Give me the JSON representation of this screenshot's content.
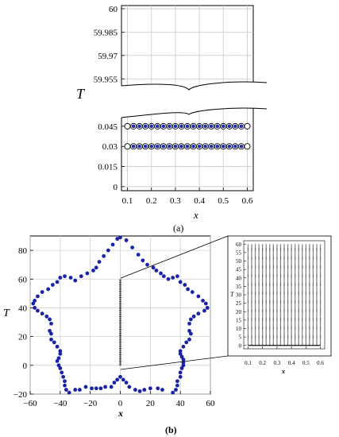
{
  "chart_data": [
    {
      "id": "a",
      "type": "scatter",
      "caption": "(a)",
      "xlabel": "x",
      "ylabel": "T",
      "xticks": [
        "0.1",
        "0.2",
        "0.3",
        "0.4",
        "0.5",
        "0.6"
      ],
      "yticks_lower": [
        "0",
        "0.015",
        "0.03",
        "0.045"
      ],
      "yticks_upper": [
        "59.955",
        "59.97",
        "59.985",
        "60"
      ],
      "xlim": [
        0.075,
        0.625
      ],
      "ylim_lower": [
        -0.003,
        0.055
      ],
      "ylim_upper": [
        59.948,
        60.002
      ],
      "axis_break": true,
      "grid": true,
      "series": [
        {
          "marker": "blue-dot-in-circle",
          "x_start": 0.125,
          "x_step": 0.025,
          "x_end": 0.575,
          "y": [
            0.03,
            0.045
          ]
        },
        {
          "marker": "open-circle",
          "x": [
            0.1,
            0.6
          ],
          "y": [
            0.03,
            0.045
          ]
        }
      ]
    },
    {
      "id": "b-main",
      "type": "scatter",
      "caption": "(b)",
      "xlabel": "x",
      "ylabel": "T",
      "xticks": [
        "−60",
        "−40",
        "−20",
        "0",
        "20",
        "40",
        "60"
      ],
      "yticks": [
        "−20",
        "0",
        "20",
        "40",
        "60",
        "80"
      ],
      "xlim": [
        -60,
        60
      ],
      "ylim": [
        -20,
        90
      ],
      "grid": true,
      "series": [
        {
          "marker": "blue-dot",
          "points": [
            [
              0,
              89
            ],
            [
              4,
              87
            ],
            [
              8,
              82
            ],
            [
              12,
              77
            ],
            [
              15,
              73
            ],
            [
              18,
              70
            ],
            [
              22,
              68
            ],
            [
              24,
              66
            ],
            [
              27,
              64
            ],
            [
              29,
              62
            ],
            [
              32,
              60
            ],
            [
              35,
              61
            ],
            [
              38,
              62
            ],
            [
              40,
              58
            ],
            [
              43,
              56
            ],
            [
              45,
              53
            ],
            [
              48,
              51
            ],
            [
              52,
              48
            ],
            [
              55,
              45
            ],
            [
              57,
              43
            ],
            [
              58,
              40
            ],
            [
              56,
              38
            ],
            [
              52,
              36
            ],
            [
              49,
              34
            ],
            [
              47,
              32
            ],
            [
              46,
              29
            ],
            [
              46,
              24
            ],
            [
              47,
              22
            ],
            [
              46,
              18
            ],
            [
              44,
              16
            ],
            [
              42,
              13
            ],
            [
              40,
              10
            ],
            [
              40,
              8
            ],
            [
              41,
              6
            ],
            [
              42,
              4
            ],
            [
              42,
              2
            ],
            [
              42,
              0
            ],
            [
              41,
              -2
            ],
            [
              40,
              -5
            ],
            [
              40,
              -8
            ],
            [
              38,
              -11
            ],
            [
              38,
              -14
            ],
            [
              37,
              -17
            ],
            [
              35,
              -19
            ],
            [
              28,
              -17
            ],
            [
              25,
              -16
            ],
            [
              20,
              -16
            ],
            [
              16,
              -17
            ],
            [
              13,
              -18
            ],
            [
              10,
              -17
            ],
            [
              6,
              -15
            ],
            [
              4,
              -12
            ],
            [
              2,
              -10
            ],
            [
              0,
              -8
            ],
            [
              -2,
              -10
            ],
            [
              -4,
              -12
            ],
            [
              -6,
              -15
            ],
            [
              -10,
              -15
            ],
            [
              -13,
              -16
            ],
            [
              -16,
              -16
            ],
            [
              -19,
              -16
            ],
            [
              -23,
              -15
            ],
            [
              -27,
              -17
            ],
            [
              -30,
              -17
            ],
            [
              -34,
              -19
            ],
            [
              -36,
              -17
            ],
            [
              -37,
              -14
            ],
            [
              -37,
              -11
            ],
            [
              -38,
              -8
            ],
            [
              -39,
              -5
            ],
            [
              -40,
              -2
            ],
            [
              -41,
              0
            ],
            [
              -42,
              3
            ],
            [
              -41,
              5
            ],
            [
              -40,
              8
            ],
            [
              -40,
              10
            ],
            [
              -42,
              13
            ],
            [
              -44,
              16
            ],
            [
              -46,
              18
            ],
            [
              -46,
              22
            ],
            [
              -47,
              24
            ],
            [
              -46,
              29
            ],
            [
              -47,
              32
            ],
            [
              -49,
              34
            ],
            [
              -52,
              36
            ],
            [
              -55,
              38
            ],
            [
              -57,
              40
            ],
            [
              -58,
              43
            ],
            [
              -57,
              45
            ],
            [
              -55,
              48
            ],
            [
              -52,
              51
            ],
            [
              -48,
              53
            ],
            [
              -45,
              56
            ],
            [
              -42,
              58
            ],
            [
              -40,
              61
            ],
            [
              -37,
              62
            ],
            [
              -33,
              61
            ],
            [
              -30,
              59
            ],
            [
              -26,
              62
            ],
            [
              -22,
              64
            ],
            [
              -18,
              66
            ],
            [
              -16,
              68
            ],
            [
              -14,
              72
            ],
            [
              -11,
              76
            ],
            [
              -8,
              80
            ],
            [
              -5,
              84
            ],
            [
              -2,
              88
            ]
          ]
        },
        {
          "marker": "black-line-of-dots",
          "x": [
            0,
            0
          ],
          "y": [
            0,
            60
          ]
        }
      ]
    },
    {
      "id": "b-inset",
      "type": "scatter",
      "xlabel": "x",
      "ylabel": "T",
      "xticks": [
        "0.1",
        "0.2",
        "0.3",
        "0.4",
        "0.5",
        "0.6"
      ],
      "yticks": [
        "0",
        "5",
        "10",
        "15",
        "20",
        "25",
        "30",
        "35",
        "40",
        "45",
        "50",
        "55",
        "60"
      ],
      "xlim": [
        0.07,
        0.63
      ],
      "ylim": [
        -2,
        62
      ],
      "grid": false,
      "series": [
        {
          "marker": "black-dots",
          "x_start": 0.1,
          "x_step": 0.025,
          "x_end": 0.6,
          "y_start": 0,
          "y_step": 0.015,
          "y_end": 60
        }
      ]
    }
  ]
}
